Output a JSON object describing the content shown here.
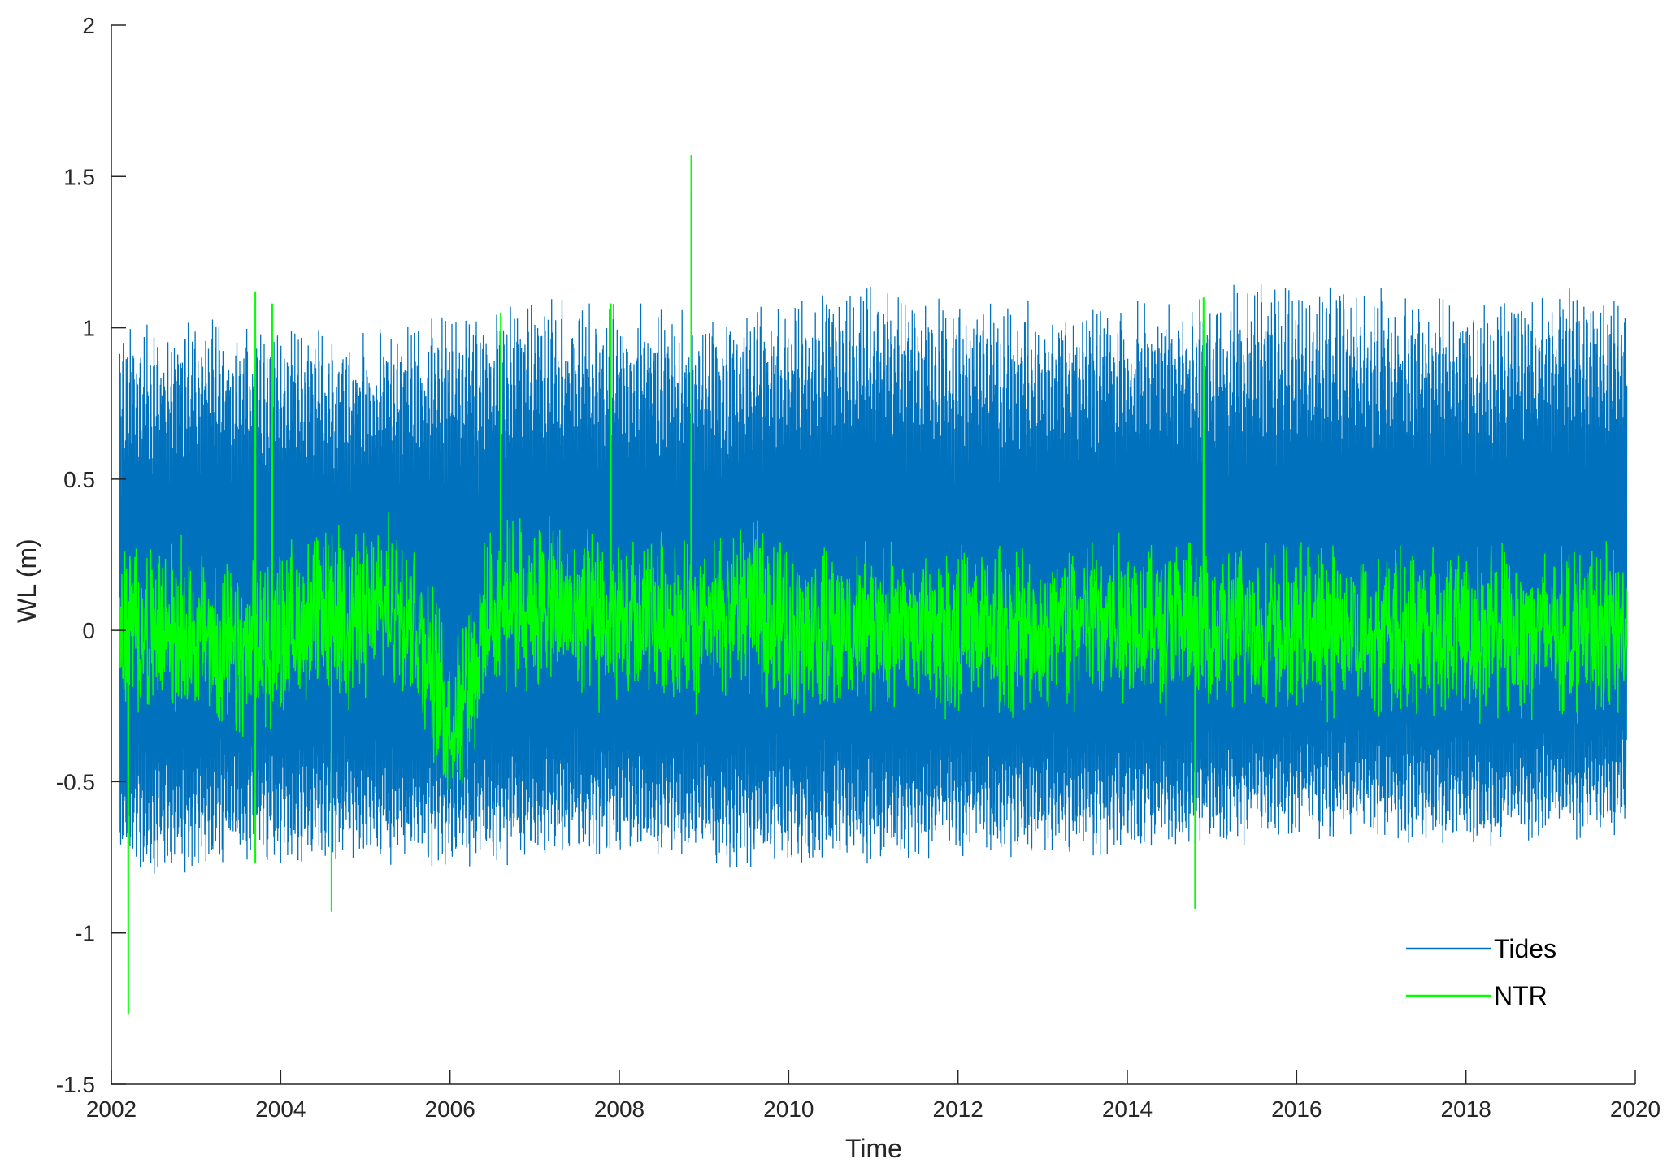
{
  "chart_data": {
    "type": "line",
    "title": "",
    "xlabel": "Time",
    "ylabel": "WL (m)",
    "xlim": [
      2002,
      2020
    ],
    "ylim": [
      -1.5,
      2
    ],
    "x_ticks": [
      "2002",
      "2004",
      "2006",
      "2008",
      "2010",
      "2012",
      "2014",
      "2016",
      "2018",
      "2020"
    ],
    "y_ticks": [
      "-1.5",
      "-1",
      "-0.5",
      "0",
      "0.5",
      "1",
      "1.5",
      "2"
    ],
    "grid": false,
    "legend_position": "bottom-right",
    "series": [
      {
        "name": "Tides",
        "color": "#0072BD",
        "envelope": {
          "x": [
            2002.1,
            2003,
            2004,
            2005,
            2006,
            2007,
            2008,
            2009,
            2010,
            2011,
            2012,
            2013,
            2014,
            2015,
            2016,
            2017,
            2018,
            2019,
            2019.9
          ],
          "max": [
            1.0,
            1.05,
            1.0,
            1.0,
            1.05,
            1.1,
            1.1,
            1.05,
            1.1,
            1.15,
            1.1,
            1.1,
            1.1,
            1.15,
            1.15,
            1.15,
            1.1,
            1.15,
            1.18
          ],
          "min": [
            -0.82,
            -0.8,
            -0.78,
            -0.78,
            -0.8,
            -0.78,
            -0.75,
            -0.78,
            -0.8,
            -0.78,
            -0.75,
            -0.75,
            -0.75,
            -0.72,
            -0.7,
            -0.7,
            -0.72,
            -0.7,
            -0.68
          ]
        }
      },
      {
        "name": "NTR",
        "color": "#00FF00",
        "baseline": {
          "x": [
            2002.1,
            2002.5,
            2003,
            2003.5,
            2004,
            2004.5,
            2005,
            2005.5,
            2006,
            2006.5,
            2007,
            2007.5,
            2008,
            2008.5,
            2009,
            2009.5,
            2010,
            2011,
            2012,
            2013,
            2014,
            2015,
            2016,
            2017,
            2018,
            2019,
            2019.9
          ],
          "y": [
            0.0,
            0.0,
            0.0,
            -0.1,
            0.0,
            0.05,
            0.05,
            0.1,
            -0.3,
            0.05,
            0.1,
            0.05,
            0.0,
            0.05,
            0.0,
            0.1,
            0.0,
            0.0,
            0.0,
            0.0,
            0.05,
            0.0,
            0.0,
            0.0,
            0.0,
            0.0,
            0.0
          ]
        },
        "spikes": [
          {
            "x": 2002.2,
            "y": -1.27
          },
          {
            "x": 2003.7,
            "y": 1.12
          },
          {
            "x": 2003.9,
            "y": 1.08
          },
          {
            "x": 2003.7,
            "y": -0.77
          },
          {
            "x": 2004.6,
            "y": -0.93
          },
          {
            "x": 2006.6,
            "y": 1.05
          },
          {
            "x": 2007.9,
            "y": 1.08
          },
          {
            "x": 2008.85,
            "y": 1.57
          },
          {
            "x": 2014.8,
            "y": -0.92
          },
          {
            "x": 2014.9,
            "y": 1.1
          }
        ]
      }
    ]
  }
}
